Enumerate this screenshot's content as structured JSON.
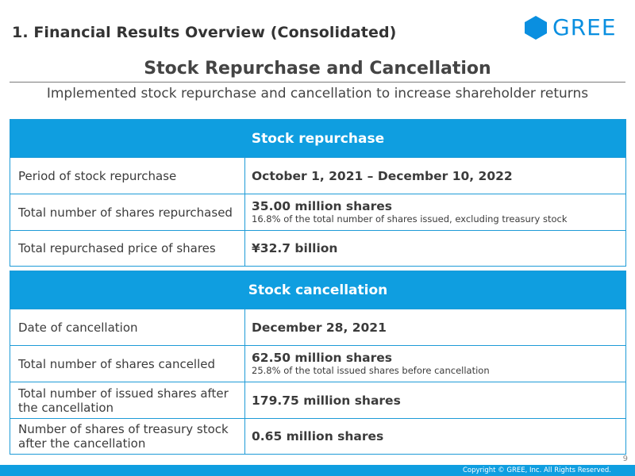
{
  "header": {
    "section_title": "1. Financial Results Overview (Consolidated)",
    "logo_text": "GREE",
    "brand_color": "#0a8fe0"
  },
  "slide": {
    "title": "Stock Repurchase and Cancellation",
    "subtitle": "Implemented stock repurchase and cancellation to increase shareholder returns"
  },
  "repurchase": {
    "heading": "Stock repurchase",
    "rows": [
      {
        "label": "Period of stock repurchase",
        "value": "October 1, 2021 – December 10, 2022",
        "note": ""
      },
      {
        "label": "Total number of shares repurchased",
        "value": "35.00 million shares",
        "note": "16.8% of the total number of shares issued, excluding treasury stock"
      },
      {
        "label": "Total repurchased price of shares",
        "value": "¥32.7 billion",
        "note": ""
      }
    ]
  },
  "cancellation": {
    "heading": "Stock cancellation",
    "rows": [
      {
        "label": "Date of cancellation",
        "value": "December 28, 2021",
        "note": ""
      },
      {
        "label": "Total number of shares cancelled",
        "value": "62.50 million shares",
        "note": "25.8% of the total issued shares before cancellation"
      },
      {
        "label": "Total number of issued shares after the cancellation",
        "value": "179.75 million shares",
        "note": ""
      },
      {
        "label": "Number of shares of treasury stock after the cancellation",
        "value": "0.65 million shares",
        "note": ""
      }
    ]
  },
  "footer": {
    "page_number": "9",
    "copyright": "Copyright © GREE, Inc. All Rights Reserved.",
    "bar_color": "#0f9ee0"
  }
}
